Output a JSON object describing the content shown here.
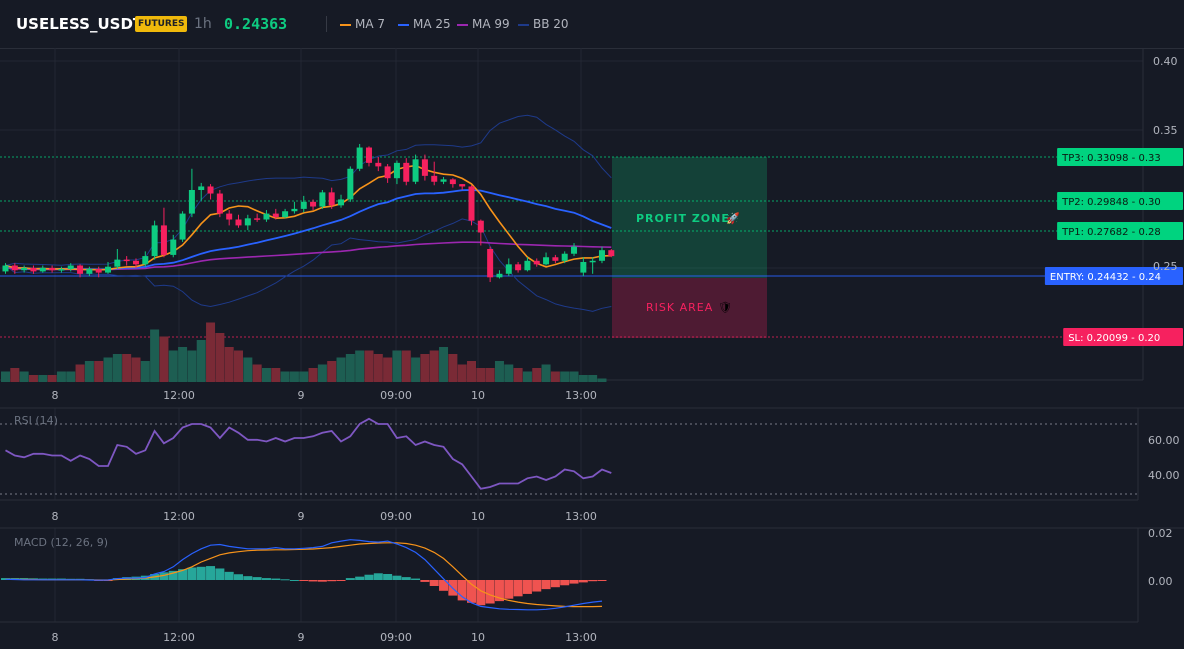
{
  "header": {
    "symbol": "USELESS_USDT",
    "badge": "FUTURES",
    "timeframe": "1h",
    "price": "0.24363",
    "legend": [
      {
        "label": "MA 7",
        "color": "#f7931a"
      },
      {
        "label": "MA 25",
        "color": "#2962ff"
      },
      {
        "label": "MA 99",
        "color": "#9c27b0"
      },
      {
        "label": "BB 20",
        "color": "#1e3a8a"
      }
    ]
  },
  "price_axis": {
    "ticks": [
      "0.40",
      "0.35",
      "0.25"
    ]
  },
  "levels": [
    {
      "label": "TP3: 0.33098",
      "value": "0.33",
      "color": "#00d37f",
      "price": 0.33098
    },
    {
      "label": "TP2: 0.29848",
      "value": "0.30",
      "color": "#00d37f",
      "price": 0.29848
    },
    {
      "label": "TP1: 0.27682",
      "value": "0.28",
      "color": "#00d37f",
      "price": 0.27682
    },
    {
      "label": "ENTRY: 0.24432",
      "value": "0.24",
      "color": "#2962ff",
      "price": 0.24432
    },
    {
      "label": "SL: 0.20099",
      "value": "0.20",
      "color": "#f6215f",
      "price": 0.20099
    }
  ],
  "zones": {
    "profit": {
      "label": "PROFIT ZONE",
      "icon": "🚀"
    },
    "risk": {
      "label": "RISK AREA",
      "icon": "🛡"
    }
  },
  "time_axis": [
    "8",
    "12:00",
    "9",
    "09:00",
    "10",
    "13:00"
  ],
  "rsi": {
    "title": "RSI (14)",
    "ticks": [
      "60.00",
      "40.00"
    ],
    "values": [
      55,
      52,
      51,
      53,
      53,
      52,
      52,
      49,
      52,
      50,
      46,
      46,
      58,
      57,
      53,
      55,
      66,
      59,
      62,
      68,
      70,
      70,
      68,
      62,
      68,
      65,
      61,
      61,
      60,
      62,
      60,
      62,
      62,
      63,
      65,
      66,
      60,
      63,
      70,
      73,
      70,
      70,
      62,
      63,
      58,
      60,
      58,
      57,
      50,
      47,
      40,
      33,
      34,
      36,
      36,
      36,
      39,
      40,
      38,
      40,
      44,
      43,
      39,
      40,
      44,
      42
    ]
  },
  "macd": {
    "title": "MACD (12, 26, 9)",
    "ticks": [
      "0.02",
      "0.00"
    ],
    "macd_line": [
      0.0003,
      0.0002,
      0.0001,
      0.0001,
      0.0001,
      0.0001,
      0.0001,
      0.0001,
      0.0001,
      0.0,
      -0.0001,
      0.0,
      0.0006,
      0.0008,
      0.0008,
      0.001,
      0.0025,
      0.0035,
      0.0055,
      0.0085,
      0.011,
      0.013,
      0.0145,
      0.0148,
      0.014,
      0.0135,
      0.013,
      0.013,
      0.013,
      0.0135,
      0.013,
      0.013,
      0.0132,
      0.0135,
      0.014,
      0.0155,
      0.0162,
      0.0168,
      0.0165,
      0.016,
      0.0158,
      0.0162,
      0.015,
      0.0135,
      0.0115,
      0.0085,
      0.0045,
      0.0005,
      -0.0035,
      -0.007,
      -0.0095,
      -0.011,
      -0.0115,
      -0.012,
      -0.0122,
      -0.0123,
      -0.0124,
      -0.0124,
      -0.0122,
      -0.0118,
      -0.0112,
      -0.0105,
      -0.0098,
      -0.0092,
      -0.0088
    ],
    "signal_line": [
      0.0003,
      0.0003,
      0.0002,
      0.0002,
      0.0001,
      0.0001,
      0.0001,
      0.0001,
      0.0001,
      0.0001,
      0.0,
      0.0,
      0.0002,
      0.0004,
      0.0006,
      0.0008,
      0.0013,
      0.0019,
      0.0029,
      0.004,
      0.0055,
      0.0075,
      0.009,
      0.0105,
      0.0113,
      0.0118,
      0.0122,
      0.0124,
      0.0125,
      0.0126,
      0.0126,
      0.0127,
      0.0128,
      0.0129,
      0.0132,
      0.0135,
      0.014,
      0.0145,
      0.015,
      0.0152,
      0.0154,
      0.0155,
      0.0155,
      0.0152,
      0.0145,
      0.0133,
      0.0115,
      0.009,
      0.0055,
      0.0018,
      -0.0018,
      -0.0045,
      -0.0062,
      -0.0075,
      -0.0085,
      -0.0092,
      -0.0098,
      -0.0102,
      -0.0105,
      -0.0108,
      -0.011,
      -0.0111,
      -0.0111,
      -0.0111,
      -0.011
    ],
    "histogram": [
      0.0008,
      0.0008,
      0.0008,
      0.0007,
      0.0006,
      0.0006,
      0.0006,
      0.0005,
      0.0005,
      0.0003,
      -0.0002,
      -0.0004,
      0.0008,
      0.0012,
      0.0014,
      0.0018,
      0.0025,
      0.0032,
      0.0038,
      0.0045,
      0.0052,
      0.0055,
      0.0058,
      0.0048,
      0.0034,
      0.0024,
      0.0016,
      0.0012,
      0.0008,
      0.0006,
      0.0003,
      0.0,
      -0.0004,
      -0.0006,
      -0.0007,
      -0.0005,
      -0.0002,
      0.0008,
      0.0014,
      0.0022,
      0.0028,
      0.0025,
      0.0018,
      0.0012,
      0.0006,
      -0.0008,
      -0.0025,
      -0.0045,
      -0.0065,
      -0.0085,
      -0.0095,
      -0.0105,
      -0.0098,
      -0.0088,
      -0.0078,
      -0.0068,
      -0.0058,
      -0.0048,
      -0.0038,
      -0.003,
      -0.0022,
      -0.0015,
      -0.001,
      -0.0005,
      -0.0002
    ]
  },
  "chart_data": {
    "type": "candlestick",
    "title": "",
    "y_ticks": [
      0.4,
      0.35,
      0.25
    ],
    "candles": [
      [
        0.231,
        0.236,
        0.238,
        0.229
      ],
      [
        0.236,
        0.232,
        0.238,
        0.229
      ],
      [
        0.232,
        0.234,
        0.236,
        0.23
      ],
      [
        0.234,
        0.231,
        0.236,
        0.229
      ],
      [
        0.231,
        0.234,
        0.236,
        0.23
      ],
      [
        0.234,
        0.232,
        0.236,
        0.23
      ],
      [
        0.232,
        0.233,
        0.235,
        0.23
      ],
      [
        0.233,
        0.236,
        0.238,
        0.231
      ],
      [
        0.236,
        0.229,
        0.237,
        0.226
      ],
      [
        0.229,
        0.233,
        0.235,
        0.227
      ],
      [
        0.233,
        0.23,
        0.235,
        0.226
      ],
      [
        0.23,
        0.235,
        0.239,
        0.229
      ],
      [
        0.235,
        0.241,
        0.25,
        0.233
      ],
      [
        0.241,
        0.24,
        0.244,
        0.236
      ],
      [
        0.24,
        0.237,
        0.242,
        0.234
      ],
      [
        0.237,
        0.244,
        0.248,
        0.235
      ],
      [
        0.244,
        0.27,
        0.274,
        0.241
      ],
      [
        0.27,
        0.245,
        0.285,
        0.243
      ],
      [
        0.245,
        0.258,
        0.262,
        0.243
      ],
      [
        0.258,
        0.28,
        0.282,
        0.256
      ],
      [
        0.28,
        0.3,
        0.318,
        0.277
      ],
      [
        0.3,
        0.303,
        0.306,
        0.291
      ],
      [
        0.303,
        0.297,
        0.305,
        0.292
      ],
      [
        0.297,
        0.28,
        0.3,
        0.277
      ],
      [
        0.28,
        0.275,
        0.283,
        0.27
      ],
      [
        0.275,
        0.27,
        0.279,
        0.268
      ],
      [
        0.27,
        0.276,
        0.279,
        0.266
      ],
      [
        0.276,
        0.275,
        0.28,
        0.273
      ],
      [
        0.275,
        0.28,
        0.283,
        0.273
      ],
      [
        0.28,
        0.277,
        0.284,
        0.275
      ],
      [
        0.277,
        0.282,
        0.284,
        0.276
      ],
      [
        0.282,
        0.284,
        0.29,
        0.28
      ],
      [
        0.284,
        0.29,
        0.295,
        0.281
      ],
      [
        0.29,
        0.286,
        0.292,
        0.283
      ],
      [
        0.286,
        0.298,
        0.3,
        0.284
      ],
      [
        0.298,
        0.287,
        0.302,
        0.284
      ],
      [
        0.287,
        0.292,
        0.296,
        0.285
      ],
      [
        0.292,
        0.318,
        0.32,
        0.29
      ],
      [
        0.318,
        0.336,
        0.339,
        0.316
      ],
      [
        0.336,
        0.323,
        0.337,
        0.32
      ],
      [
        0.323,
        0.32,
        0.328,
        0.316
      ],
      [
        0.32,
        0.31,
        0.322,
        0.306
      ],
      [
        0.31,
        0.323,
        0.325,
        0.305
      ],
      [
        0.323,
        0.307,
        0.327,
        0.304
      ],
      [
        0.307,
        0.326,
        0.33,
        0.305
      ],
      [
        0.326,
        0.312,
        0.33,
        0.308
      ],
      [
        0.312,
        0.307,
        0.324,
        0.304
      ],
      [
        0.307,
        0.309,
        0.311,
        0.305
      ],
      [
        0.309,
        0.305,
        0.31,
        0.302
      ],
      [
        0.305,
        0.303,
        0.305,
        0.3
      ],
      [
        0.303,
        0.274,
        0.304,
        0.27
      ],
      [
        0.274,
        0.264,
        0.275,
        0.253
      ],
      [
        0.25,
        0.226,
        0.252,
        0.222
      ],
      [
        0.226,
        0.229,
        0.232,
        0.225
      ],
      [
        0.229,
        0.237,
        0.242,
        0.227
      ],
      [
        0.237,
        0.232,
        0.239,
        0.23
      ],
      [
        0.232,
        0.24,
        0.243,
        0.231
      ],
      [
        0.24,
        0.237,
        0.242,
        0.235
      ],
      [
        0.237,
        0.243,
        0.247,
        0.236
      ],
      [
        0.243,
        0.24,
        0.245,
        0.238
      ],
      [
        0.24,
        0.246,
        0.248,
        0.238
      ],
      [
        0.246,
        0.252,
        0.255,
        0.244
      ],
      [
        0.23,
        0.239,
        0.243,
        0.227
      ],
      [
        0.239,
        0.24,
        0.243,
        0.229
      ],
      [
        0.24,
        0.249,
        0.252,
        0.238
      ],
      [
        0.249,
        0.244,
        0.25,
        0.243
      ]
    ],
    "volume": [
      3,
      4,
      3,
      2,
      2,
      2,
      3,
      3,
      5,
      6,
      6,
      7,
      8,
      8,
      7,
      6,
      15,
      13,
      9,
      10,
      9,
      12,
      17,
      14,
      10,
      9,
      7,
      5,
      4,
      4,
      3,
      3,
      3,
      4,
      5,
      6,
      7,
      8,
      9,
      9,
      8,
      7,
      9,
      9,
      7,
      8,
      9,
      10,
      8,
      5,
      6,
      4,
      4,
      6,
      5,
      4,
      3,
      4,
      5,
      3,
      3,
      3,
      2,
      2,
      1
    ]
  }
}
